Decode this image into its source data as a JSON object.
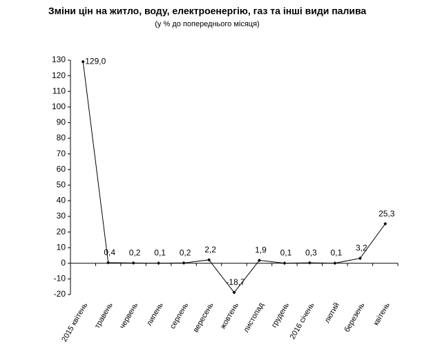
{
  "chart_data": {
    "type": "line",
    "title": "Зміни цін на житло, воду, електроенергію, газ та інші види палива",
    "subtitle": "(у % до попереднього місяця)",
    "categories": [
      "2015 квітень",
      "травень",
      "червень",
      "липень",
      "серпень",
      "вересень",
      "жовтень",
      "листопад",
      "грудень",
      "2016 січень",
      "лютий",
      "березень",
      "квітень"
    ],
    "values": [
      129.0,
      0.4,
      0.2,
      0.1,
      0.2,
      2.2,
      -18.7,
      1.9,
      0.1,
      0.3,
      0.1,
      3.2,
      25.3
    ],
    "value_labels": [
      "129,0",
      "0,4",
      "0,2",
      "0,1",
      "0,2",
      "2,2",
      "-18,7",
      "1,9",
      "0,1",
      "0,3",
      "0,1",
      "3,2",
      "25,3"
    ],
    "color": "#000000",
    "ylim": [
      -20,
      130
    ],
    "yticks": [
      -20,
      -10,
      0,
      10,
      20,
      30,
      40,
      50,
      60,
      70,
      80,
      90,
      100,
      110,
      120,
      130
    ]
  }
}
